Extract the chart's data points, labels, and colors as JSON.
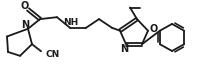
{
  "bg_color": "#ffffff",
  "line_color": "#1a1a1a",
  "line_width": 1.3,
  "figsize": [
    1.98,
    0.79
  ],
  "dpi": 100,
  "xlim": [
    0,
    198
  ],
  "ylim": [
    0,
    79
  ]
}
